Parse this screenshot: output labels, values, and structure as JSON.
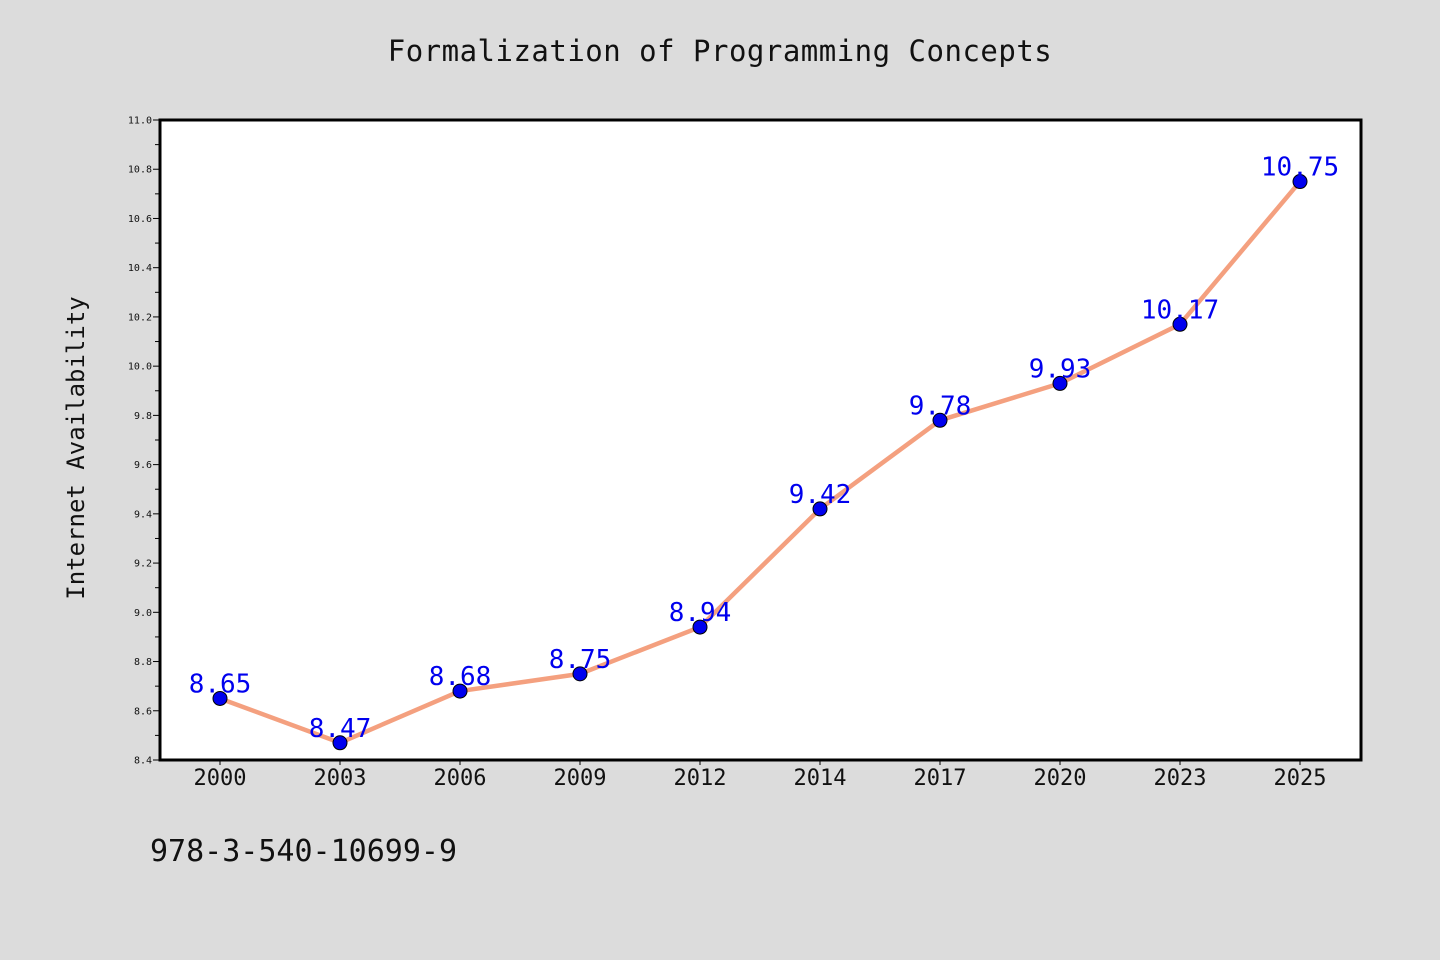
{
  "chart_data": {
    "type": "line",
    "title": "Formalization of Programming Concepts",
    "xlabel": "",
    "ylabel": "Internet Availability",
    "categories": [
      "2000",
      "2003",
      "2006",
      "2009",
      "2012",
      "2014",
      "2017",
      "2020",
      "2023",
      "2025"
    ],
    "series": [
      {
        "values": [
          8.65,
          8.47,
          8.68,
          8.75,
          8.94,
          9.42,
          9.78,
          9.93,
          10.17,
          10.75
        ],
        "data_labels": [
          "8.65",
          "8.47",
          "8.68",
          "8.75",
          "8.94",
          "9.42",
          "9.78",
          "9.93",
          "10.17",
          "10.75"
        ],
        "line_color": "#f4a07f",
        "marker_color": "#0000ee",
        "label_color": "#0000ee"
      }
    ],
    "ylim": [
      8.4,
      11.0
    ],
    "y_tick_labels": [
      "8.4",
      "8.6",
      "8.8",
      "9.0",
      "9.2",
      "9.4",
      "9.6",
      "9.8",
      "10.0",
      "10.2",
      "10.4",
      "10.6",
      "10.8",
      "11.0"
    ],
    "grid": false,
    "legend": "none"
  },
  "footer": {
    "identifier": "978-3-540-10699-9"
  },
  "colors": {
    "background": "#dcdcdc",
    "plot_area": "#ffffff",
    "axis": "#000000"
  }
}
